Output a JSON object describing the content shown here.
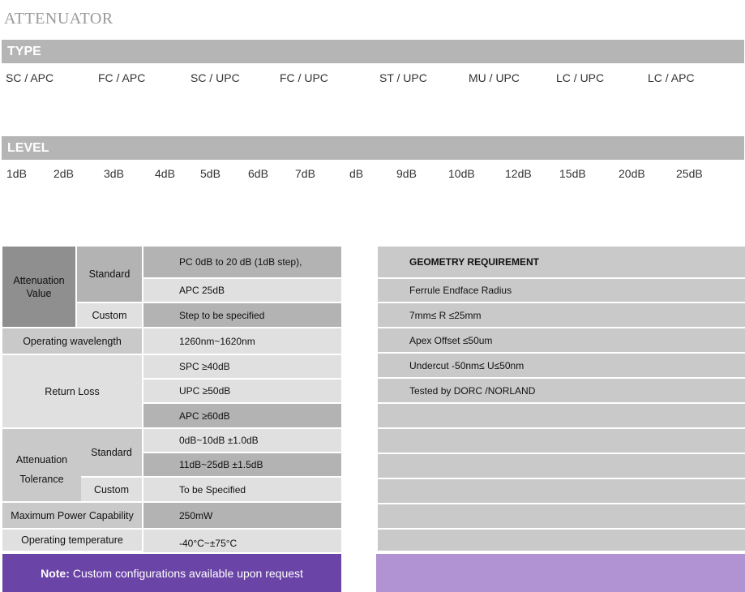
{
  "title": "ATTENUATOR",
  "type_section": {
    "header": "TYPE",
    "options": [
      "SC / APC",
      "FC / APC",
      "SC / UPC",
      "FC / UPC",
      "ST / UPC",
      "MU / UPC",
      "LC / UPC",
      "LC / APC"
    ]
  },
  "level_section": {
    "header": "LEVEL",
    "options": [
      "1dB",
      "2dB",
      "3dB",
      "4dB",
      "5dB",
      "6dB",
      "7dB",
      "dB",
      "9dB",
      "10dB",
      "12dB",
      "15dB",
      "20dB",
      "25dB"
    ]
  },
  "spec_table": {
    "attenuation_value": "Attenuation\nValue",
    "standard": "Standard",
    "pc": "PC    0dB to 20 dB (1dB step),",
    "apc": "APC   25dB",
    "custom": "Custom",
    "step": "Step to be specified",
    "operating_wavelength": "Operating wavelength",
    "wavelength_value": "1260nm~1620nm",
    "return_loss": "Return Loss",
    "spc": "SPC       ≥40dB",
    "upc": "UPC       ≥50dB",
    "apc_rl": "APC       ≥60dB",
    "attenuation_tolerance_1": "Attenuation",
    "attenuation_tolerance_2": "Tolerance",
    "tol_standard": "Standard",
    "tol_custom": "Custom",
    "tol_1": "0dB~10dB     ±1.0dB",
    "tol_2": "11dB~25dB   ±1.5dB",
    "tol_3": "To be Specified",
    "max_power": "Maximum Power Capability",
    "max_power_value": "250mW",
    "operating_temperature": "Operating temperature",
    "temperature_value": "-40°C~±75°C"
  },
  "geometry": {
    "heading": "GEOMETRY REQUIREMENT",
    "rows": [
      "Ferrule Endface Radius",
      "7mm≤ R ≤25mm",
      "Apex Offset ≤50um",
      "Undercut  -50nm≤ U≤50nm",
      "Tested by DORC /NORLAND"
    ]
  },
  "note": {
    "label": "Note:",
    "text": "Custom configurations available upon request"
  }
}
